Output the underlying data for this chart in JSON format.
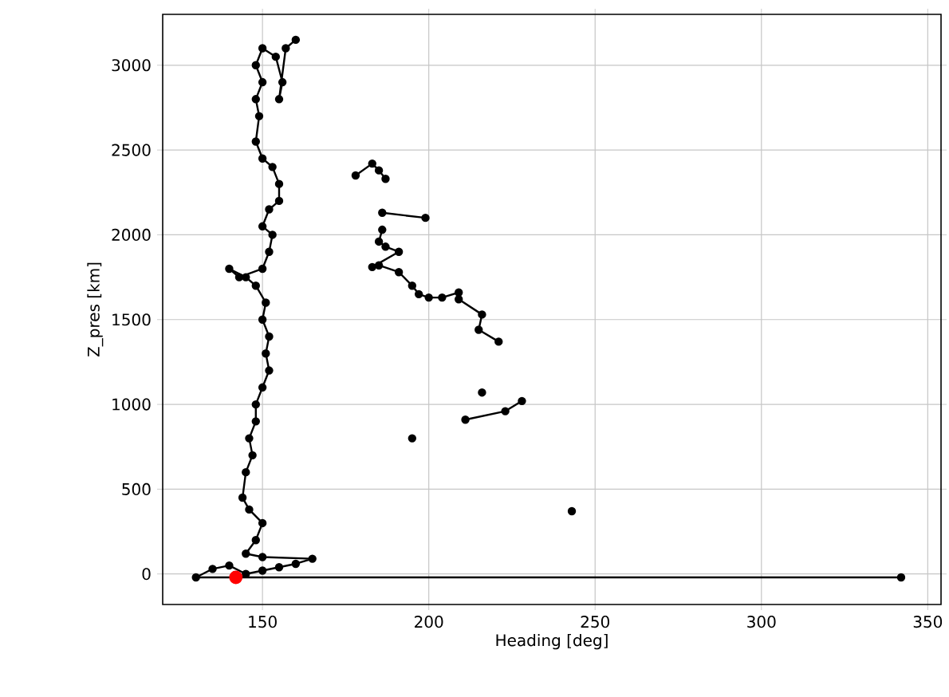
{
  "chart_data": {
    "type": "line",
    "xlabel": "Heading [deg]",
    "ylabel": "Z_pres [km]",
    "xlim": [
      120,
      354
    ],
    "ylim": [
      -180,
      3300
    ],
    "xticks": [
      150,
      200,
      250,
      300,
      350
    ],
    "yticks": [
      0,
      500,
      1000,
      1500,
      2000,
      2500,
      3000
    ],
    "grid": true,
    "marker": "circle",
    "line_style": "solid",
    "series": [
      {
        "color": "#000000",
        "x": [
          342,
          130,
          135,
          140,
          145,
          150,
          155,
          160,
          165,
          150,
          145,
          148,
          150,
          146,
          144,
          145,
          147,
          146,
          148,
          148,
          150,
          152,
          151,
          152,
          150,
          151,
          148,
          145,
          140,
          143,
          150,
          152,
          153,
          150,
          152,
          155,
          155,
          153,
          150,
          148,
          149,
          148,
          150,
          148,
          150,
          154,
          156,
          155,
          157,
          160
        ],
        "values": [
          -20,
          -20,
          30,
          50,
          0,
          20,
          40,
          60,
          90,
          100,
          120,
          200,
          300,
          380,
          450,
          600,
          700,
          800,
          900,
          1000,
          1100,
          1200,
          1300,
          1400,
          1500,
          1600,
          1700,
          1750,
          1800,
          1750,
          1800,
          1900,
          2000,
          2050,
          2150,
          2200,
          2300,
          2400,
          2450,
          2550,
          2700,
          2800,
          2900,
          3000,
          3100,
          3050,
          2900,
          2800,
          3100,
          3150
        ]
      },
      {
        "color": "#000000",
        "x": [
          178,
          183,
          185,
          187,
          null,
          186,
          199,
          null,
          186,
          185,
          187,
          191,
          183,
          185,
          191,
          195,
          197,
          200,
          204,
          209,
          209,
          216,
          215,
          221,
          null,
          216,
          null,
          211,
          223,
          228,
          null,
          195,
          null,
          243
        ],
        "values": [
          2350,
          2420,
          2380,
          2330,
          null,
          2130,
          2100,
          null,
          2030,
          1960,
          1930,
          1900,
          1810,
          1820,
          1780,
          1700,
          1650,
          1630,
          1630,
          1660,
          1620,
          1530,
          1440,
          1370,
          null,
          1070,
          null,
          910,
          960,
          1020,
          null,
          800,
          null,
          370
        ]
      },
      {
        "type": "scatter",
        "color": "#ff0000",
        "x": [
          142
        ],
        "values": [
          -20
        ]
      }
    ]
  }
}
